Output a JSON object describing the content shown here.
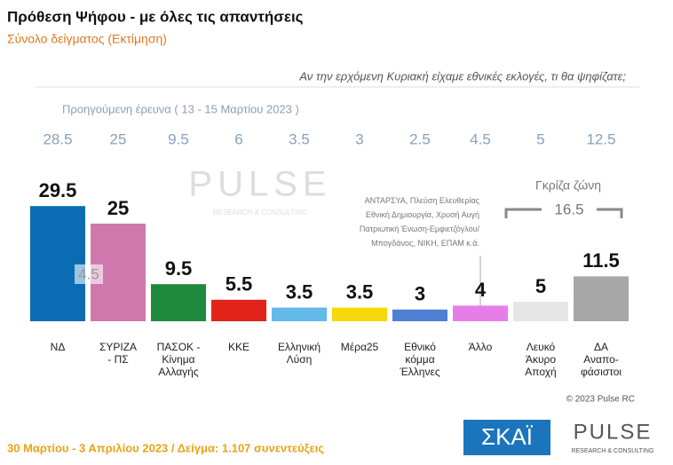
{
  "chart_data": {
    "type": "bar",
    "title": "Πρόθεση Ψήφου - με όλες τις απαντήσεις",
    "subtitle": "Σύνολο δείγματος   (Εκτίμηση)",
    "question": "Αν την ερχόμενη Κυριακή είχαμε εθνικές εκλογές, τι θα ψηφίζατε;",
    "categories": [
      "ΝΔ",
      "ΣΥΡΙΖΑ\n- ΠΣ",
      "ΠΑΣΟΚ -\nΚίνημα\nΑλλαγής",
      "ΚΚΕ",
      "Ελληνική\nΛύση",
      "Μέρα25",
      "Εθνικό\nκόμμα\nΈλληνες",
      "Άλλο",
      "Λευκό\nΆκυρο\nΑποχή",
      "ΔΑ\nΑναπο-\nφάσιστοι"
    ],
    "values": [
      29.5,
      25,
      9.5,
      5.5,
      3.5,
      3.5,
      3,
      4,
      5,
      11.5
    ],
    "colors": [
      "#0a6db3",
      "#cf78ad",
      "#1f8a3c",
      "#e2231a",
      "#63b9e8",
      "#f5d90a",
      "#4d7fd2",
      "#e67ee8",
      "#e6e6e6",
      "#a7a7a7"
    ],
    "previous": {
      "label": "Προηγούμενη έρευνα  ( 13 - 15 Μαρτίου  2023 )",
      "values": [
        28.5,
        25,
        9.5,
        6,
        3.5,
        3,
        2.5,
        4.5,
        5,
        12.5
      ]
    },
    "lead_gap": 4.5,
    "other_note": "ΑΝΤΑΡΣΥΑ, Πλεύση Ελευθερίας\nΕθνική Δημιουργία, Χρυσή Αυγή\nΠατριωτική Ένωση-Εμφιετζόγλου/\nΜπογδάνος, ΝΙΚΗ, ΕΠΑΜ  κ.ά.",
    "gray_zone": {
      "label": "Γκρίζα ζώνη",
      "value": 16.5
    },
    "copyright": "© 2023 Pulse RC",
    "footer": "30 Μαρτίου - 3  Απριλίου  2023  /  Δείγμα:  1.107 συνεντεύξεις",
    "logos": {
      "skai": "ΣΚΑΪ",
      "pulse": "PULSE",
      "pulse_sub": "RESEARCH & CONSULTING"
    }
  }
}
